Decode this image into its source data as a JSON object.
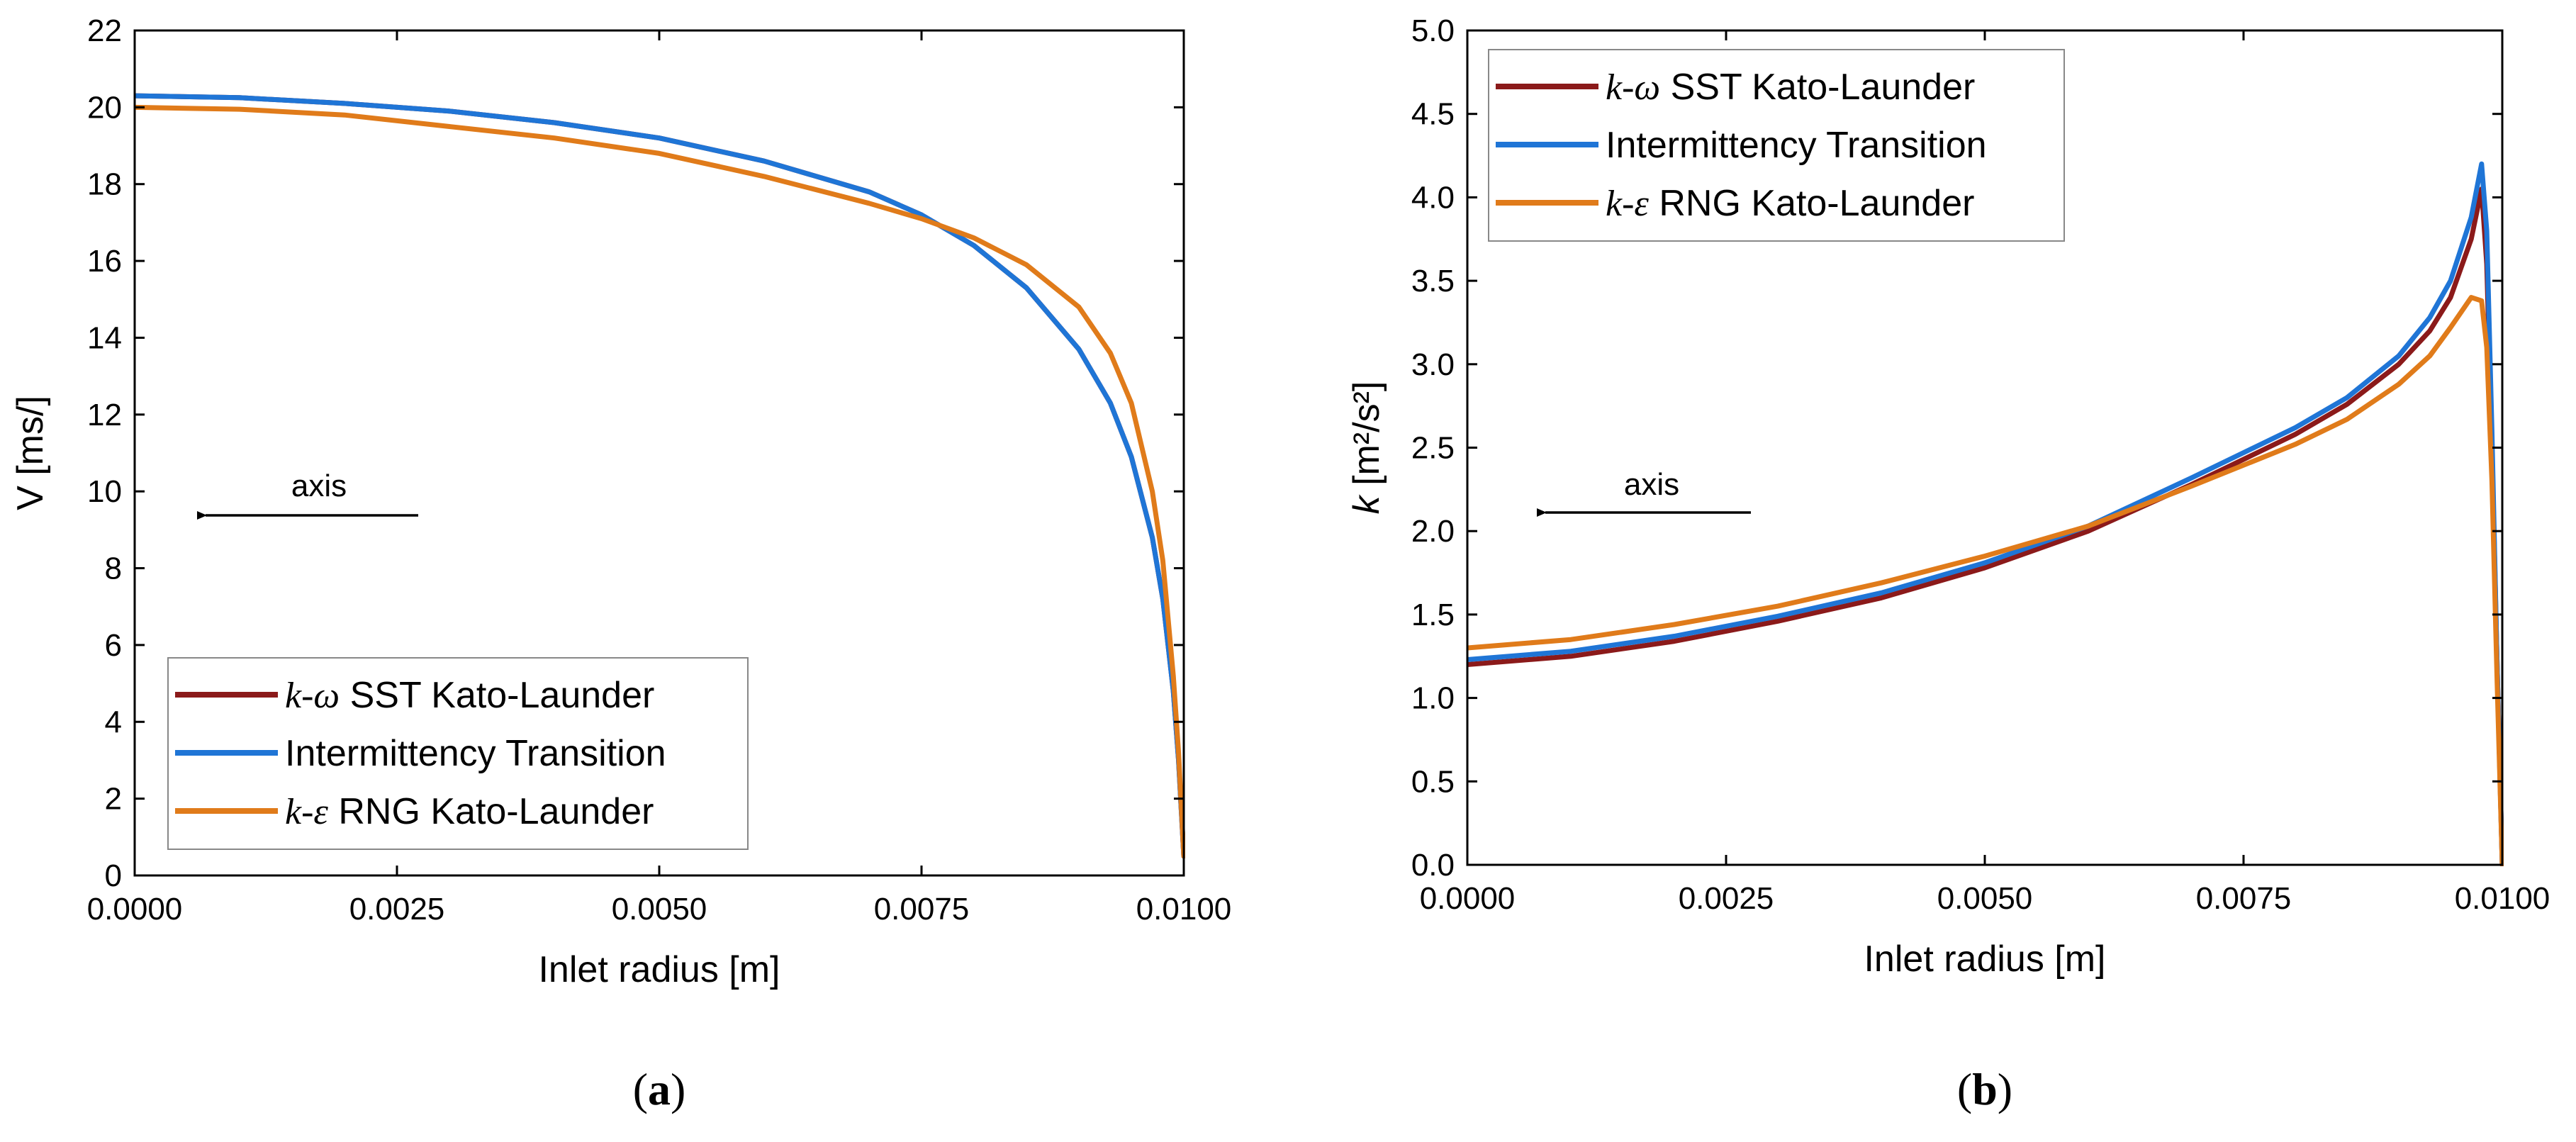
{
  "colors": {
    "kw_sst": "#8b1a1a",
    "intermittency": "#1f75d6",
    "ke_rng": "#e07b1a"
  },
  "chart_data": [
    {
      "type": "line",
      "panel_label": "(a)",
      "panel_letter": "a",
      "xlabel": "Inlet radius [m]",
      "ylabel": "V [ms/]",
      "xlim": [
        0,
        0.01
      ],
      "ylim": [
        0,
        22
      ],
      "xticks": [
        0,
        0.0025,
        0.005,
        0.0075,
        0.01
      ],
      "xtick_labels": [
        "0.0000",
        "0.0025",
        "0.0050",
        "0.0075",
        "0.0100"
      ],
      "yticks": [
        0,
        2,
        4,
        6,
        8,
        10,
        12,
        14,
        16,
        18,
        20,
        22
      ],
      "ytick_labels": [
        "0",
        "2",
        "4",
        "6",
        "8",
        "10",
        "12",
        "14",
        "16",
        "18",
        "20",
        "22"
      ],
      "annotation": "axis",
      "legend_position": "bottom-left",
      "legend": [
        {
          "italic": "k-ω",
          "rest": " SST Kato-Launder",
          "color_key": "kw_sst"
        },
        {
          "italic": "",
          "rest": "Intermittency Transition",
          "color_key": "intermittency"
        },
        {
          "italic": "k-ε",
          "rest": " RNG Kato-Launder",
          "color_key": "ke_rng"
        }
      ],
      "series": [
        {
          "name": "k-ω SST Kato-Launder",
          "color_key": "kw_sst",
          "x": [
            0,
            0.001,
            0.002,
            0.003,
            0.004,
            0.005,
            0.006,
            0.007,
            0.0075,
            0.008,
            0.0085,
            0.009,
            0.0093,
            0.0095,
            0.0097,
            0.0098,
            0.0099,
            0.00995,
            0.01
          ],
          "y": [
            20.3,
            20.25,
            20.1,
            19.9,
            19.6,
            19.2,
            18.6,
            17.8,
            17.2,
            16.4,
            15.3,
            13.7,
            12.3,
            10.9,
            8.8,
            7.2,
            4.8,
            3.0,
            0.5
          ]
        },
        {
          "name": "Intermittency Transition",
          "color_key": "intermittency",
          "x": [
            0,
            0.001,
            0.002,
            0.003,
            0.004,
            0.005,
            0.006,
            0.007,
            0.0075,
            0.008,
            0.0085,
            0.009,
            0.0093,
            0.0095,
            0.0097,
            0.0098,
            0.0099,
            0.00995,
            0.01
          ],
          "y": [
            20.3,
            20.25,
            20.1,
            19.9,
            19.6,
            19.2,
            18.6,
            17.8,
            17.2,
            16.4,
            15.3,
            13.7,
            12.3,
            10.9,
            8.8,
            7.2,
            4.8,
            3.0,
            0.5
          ]
        },
        {
          "name": "k-ε RNG Kato-Launder",
          "color_key": "ke_rng",
          "x": [
            0,
            0.001,
            0.002,
            0.003,
            0.004,
            0.005,
            0.006,
            0.007,
            0.0075,
            0.008,
            0.0085,
            0.009,
            0.0093,
            0.0095,
            0.0097,
            0.0098,
            0.0099,
            0.00995,
            0.01
          ],
          "y": [
            20.0,
            19.95,
            19.8,
            19.5,
            19.2,
            18.8,
            18.2,
            17.5,
            17.1,
            16.6,
            15.9,
            14.8,
            13.6,
            12.3,
            10.0,
            8.2,
            5.2,
            3.2,
            0.5
          ]
        }
      ]
    },
    {
      "type": "line",
      "panel_label": "(b)",
      "panel_letter": "b",
      "xlabel": "Inlet radius [m]",
      "ylabel": "k [m²/s²]",
      "ylabel_k": "k",
      "ylabel_units": "[m²/s²]",
      "xlim": [
        0,
        0.01
      ],
      "ylim": [
        0,
        5
      ],
      "xticks": [
        0,
        0.0025,
        0.005,
        0.0075,
        0.01
      ],
      "xtick_labels": [
        "0.0000",
        "0.0025",
        "0.0050",
        "0.0075",
        "0.0100"
      ],
      "yticks": [
        0,
        0.5,
        1,
        1.5,
        2,
        2.5,
        3,
        3.5,
        4,
        4.5,
        5
      ],
      "ytick_labels": [
        "0.0",
        "0.5",
        "1.0",
        "1.5",
        "2.0",
        "2.5",
        "3.0",
        "3.5",
        "4.0",
        "4.5",
        "5.0"
      ],
      "annotation": "axis",
      "legend_position": "top-left",
      "legend": [
        {
          "italic": "k-ω",
          "rest": " SST Kato-Launder",
          "color_key": "kw_sst"
        },
        {
          "italic": "",
          "rest": "Intermittency Transition",
          "color_key": "intermittency"
        },
        {
          "italic": "k-ε",
          "rest": " RNG Kato-Launder",
          "color_key": "ke_rng"
        }
      ],
      "series": [
        {
          "name": "k-ω SST Kato-Launder",
          "color_key": "kw_sst",
          "x": [
            0,
            0.001,
            0.002,
            0.003,
            0.004,
            0.005,
            0.006,
            0.007,
            0.008,
            0.0085,
            0.009,
            0.0093,
            0.0095,
            0.0097,
            0.0098,
            0.00985,
            0.0099,
            0.00995,
            0.01
          ],
          "y": [
            1.2,
            1.25,
            1.34,
            1.46,
            1.6,
            1.78,
            2.0,
            2.28,
            2.58,
            2.76,
            3.0,
            3.2,
            3.4,
            3.75,
            4.05,
            3.6,
            2.5,
            1.2,
            0.0
          ]
        },
        {
          "name": "Intermittency Transition",
          "color_key": "intermittency",
          "x": [
            0,
            0.001,
            0.002,
            0.003,
            0.004,
            0.005,
            0.006,
            0.007,
            0.008,
            0.0085,
            0.009,
            0.0093,
            0.0095,
            0.0097,
            0.0098,
            0.00985,
            0.0099,
            0.00995,
            0.01
          ],
          "y": [
            1.23,
            1.28,
            1.37,
            1.49,
            1.63,
            1.81,
            2.03,
            2.32,
            2.62,
            2.8,
            3.05,
            3.28,
            3.5,
            3.88,
            4.2,
            3.8,
            2.6,
            1.2,
            0.0
          ]
        },
        {
          "name": "k-ε RNG Kato-Launder",
          "color_key": "ke_rng",
          "x": [
            0,
            0.001,
            0.002,
            0.003,
            0.004,
            0.005,
            0.006,
            0.007,
            0.008,
            0.0085,
            0.009,
            0.0093,
            0.0095,
            0.0097,
            0.0098,
            0.00985,
            0.0099,
            0.00995,
            0.01
          ],
          "y": [
            1.3,
            1.35,
            1.44,
            1.55,
            1.69,
            1.85,
            2.03,
            2.27,
            2.52,
            2.67,
            2.88,
            3.05,
            3.22,
            3.4,
            3.38,
            3.1,
            2.3,
            1.1,
            0.0
          ]
        }
      ]
    }
  ]
}
